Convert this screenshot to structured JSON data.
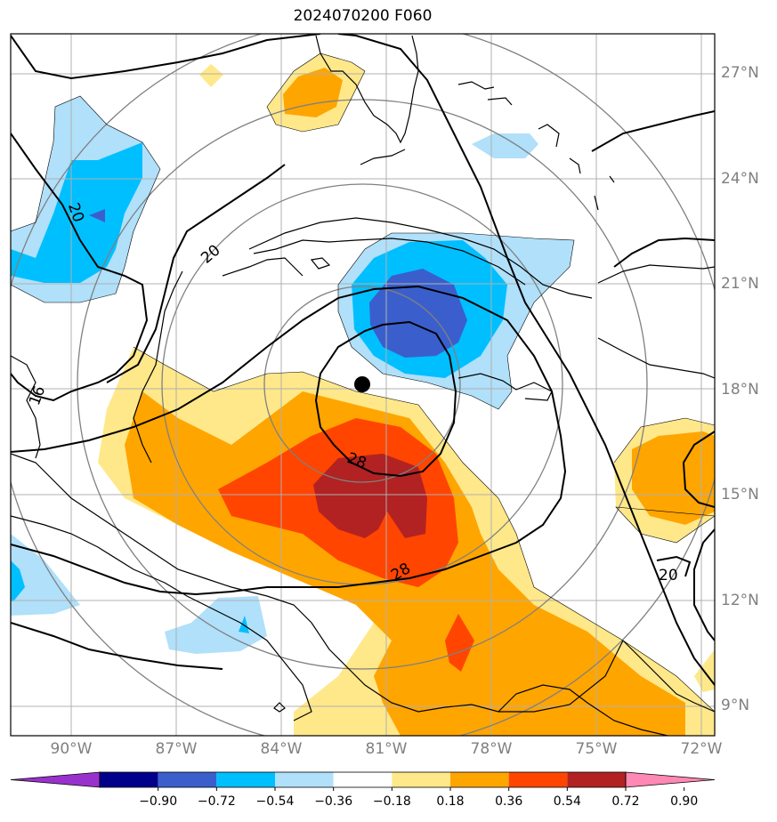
{
  "title": "2024070200 F060",
  "lat_labels": [
    {
      "text": "27°N",
      "lat": 27
    },
    {
      "text": "24°N",
      "lat": 24
    },
    {
      "text": "21°N",
      "lat": 21
    },
    {
      "text": "18°N",
      "lat": 18
    },
    {
      "text": "15°N",
      "lat": 15
    },
    {
      "text": "12°N",
      "lat": 12
    },
    {
      "text": "9°N",
      "lat": 9
    }
  ],
  "lon_labels": [
    {
      "text": "90°W",
      "lon": -90
    },
    {
      "text": "87°W",
      "lon": -87
    },
    {
      "text": "84°W",
      "lon": -84
    },
    {
      "text": "81°W",
      "lon": -81
    },
    {
      "text": "78°W",
      "lon": -78
    },
    {
      "text": "75°W",
      "lon": -75
    },
    {
      "text": "72°W",
      "lon": -72
    }
  ],
  "colorbar": {
    "ticks": [
      "−0.90",
      "−0.72",
      "−0.54",
      "−0.36",
      "−0.18",
      "0.18",
      "0.36",
      "0.54",
      "0.72",
      "0.90"
    ],
    "colors": [
      "#9932cc",
      "#00008b",
      "#3a5fcd",
      "#00bfff",
      "#b0e0fa",
      "#ffffff",
      "#ffe88a",
      "#ffa500",
      "#ff4500",
      "#b22222",
      "#ff88b4"
    ]
  },
  "contour_labels": {
    "c20_west": "20",
    "c20_center": "20",
    "c16": "16",
    "c28_upper": "28",
    "c28_lower": "28",
    "c20_east": "20"
  },
  "storm_center": {
    "lat": 18.2,
    "lon": -81.5
  }
}
